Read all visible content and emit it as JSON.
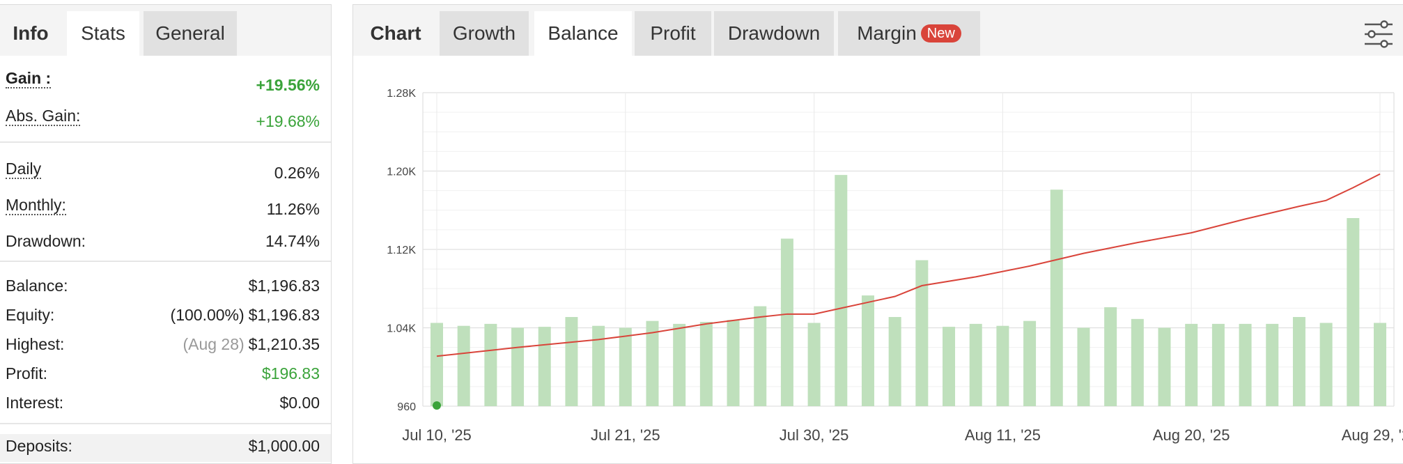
{
  "left_tabs": [
    {
      "label": "Info",
      "state": "plain"
    },
    {
      "label": "Stats",
      "state": "active"
    },
    {
      "label": "General",
      "state": "inactive"
    }
  ],
  "stats": {
    "gain": {
      "label": "Gain :",
      "value": "+19.56%"
    },
    "abs_gain": {
      "label": "Abs. Gain:",
      "value": "+19.68%"
    },
    "daily": {
      "label": "Daily",
      "value": "0.26%"
    },
    "monthly": {
      "label": "Monthly:",
      "value": "11.26%"
    },
    "drawdown": {
      "label": "Drawdown:",
      "value": "14.74%"
    },
    "balance": {
      "label": "Balance:",
      "value": "$1,196.83"
    },
    "equity": {
      "label": "Equity:",
      "pre": "(100.00%)",
      "value": "$1,196.83"
    },
    "highest": {
      "label": "Highest:",
      "sub": "(Aug 28)",
      "value": "$1,210.35"
    },
    "profit": {
      "label": "Profit:",
      "value": "$196.83"
    },
    "interest": {
      "label": "Interest:",
      "value": "$0.00"
    },
    "deposits": {
      "label": "Deposits:",
      "value": "$1,000.00"
    }
  },
  "chart_tabs": [
    {
      "label": "Chart",
      "state": "plain"
    },
    {
      "label": "Growth",
      "state": "inactive"
    },
    {
      "label": "Balance",
      "state": "active"
    },
    {
      "label": "Profit",
      "state": "inactive"
    },
    {
      "label": "Drawdown",
      "state": "inactive"
    },
    {
      "label": "Margin",
      "state": "inactive",
      "badge": "New"
    }
  ],
  "settings_icon": "sliders-icon",
  "colors": {
    "balance_line": "#d9443a",
    "bars": "#bfe0bc",
    "start_marker": "#3aa33a",
    "positive": "#3aa33a",
    "badge": "#d9443a"
  },
  "chart_data": {
    "type": "bar+line",
    "ylim": [
      960,
      1280
    ],
    "y_ticks": [
      960,
      1040,
      1120,
      1200,
      1280
    ],
    "y_tick_labels": [
      "960",
      "1.04K",
      "1.12K",
      "1.20K",
      "1.28K"
    ],
    "x_tick_labels": [
      "Jul 10, '25",
      "Jul 21, '25",
      "Jul 30, '25",
      "Aug 11, '25",
      "Aug 20, '25",
      "Aug 29, '25"
    ],
    "bar_values": [
      1045,
      1042,
      1044,
      1040,
      1041,
      1051,
      1042,
      1040,
      1047,
      1044,
      1046,
      1048,
      1062,
      1131,
      1045,
      1196,
      1073,
      1051,
      1109,
      1041,
      1044,
      1042,
      1047,
      1181,
      1040,
      1061,
      1049,
      1040,
      1044,
      1044,
      1044,
      1044,
      1051,
      1045,
      1152,
      1045
    ],
    "balance_line": [
      [
        0,
        1011
      ],
      [
        3,
        1020
      ],
      [
        6,
        1028
      ],
      [
        8,
        1035
      ],
      [
        10,
        1044
      ],
      [
        12,
        1051
      ],
      [
        13,
        1054
      ],
      [
        14,
        1054
      ],
      [
        15,
        1060
      ],
      [
        16,
        1066
      ],
      [
        17,
        1072
      ],
      [
        18,
        1083
      ],
      [
        20,
        1092
      ],
      [
        22,
        1103
      ],
      [
        24,
        1116
      ],
      [
        26,
        1127
      ],
      [
        28,
        1137
      ],
      [
        30,
        1151
      ],
      [
        32,
        1164
      ],
      [
        33,
        1170
      ],
      [
        34,
        1183
      ],
      [
        35,
        1197
      ]
    ],
    "start_value": 1000
  }
}
